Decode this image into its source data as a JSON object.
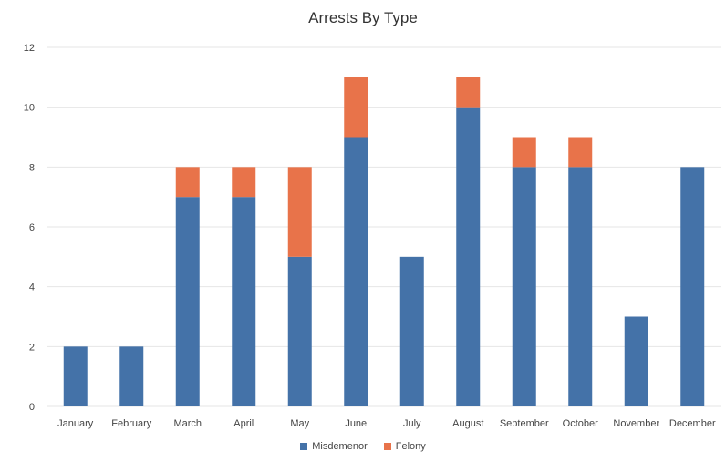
{
  "chart_data": {
    "type": "bar",
    "stacked": true,
    "title": "Arrests By Type",
    "xlabel": "",
    "ylabel": "",
    "ylim": [
      0,
      12
    ],
    "yticks": [
      0,
      2,
      4,
      6,
      8,
      10,
      12
    ],
    "grid": true,
    "legend_position": "bottom",
    "categories": [
      "January",
      "February",
      "March",
      "April",
      "May",
      "June",
      "July",
      "August",
      "September",
      "October",
      "November",
      "December"
    ],
    "series": [
      {
        "name": "Misdemenor",
        "color": "#4472a8",
        "values": [
          2,
          2,
          7,
          7,
          5,
          9,
          5,
          10,
          8,
          8,
          3,
          8
        ]
      },
      {
        "name": "Felony",
        "color": "#e8734a",
        "values": [
          0,
          0,
          1,
          1,
          3,
          2,
          0,
          1,
          1,
          1,
          0,
          0
        ]
      }
    ]
  }
}
